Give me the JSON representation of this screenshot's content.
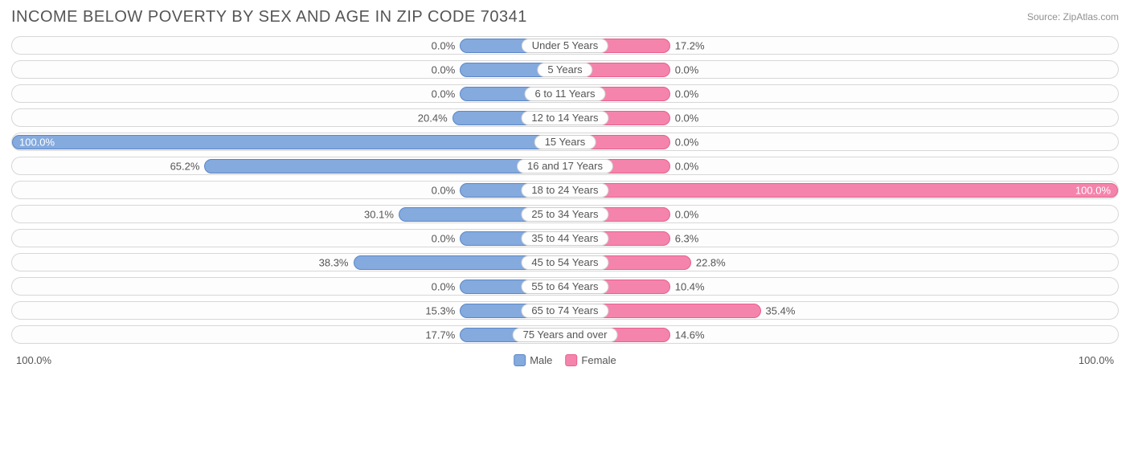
{
  "chart": {
    "type": "diverging-bar",
    "title": "INCOME BELOW POVERTY BY SEX AND AGE IN ZIP CODE 70341",
    "source": "Source: ZipAtlas.com",
    "title_color": "#555555",
    "title_fontsize": 20,
    "source_color": "#909090",
    "track_border_color": "#d7d7d7",
    "track_bg": "#fdfdfd",
    "badge_bg": "#fefefe",
    "badge_border": "#cfcfcf",
    "text_color": "#555555",
    "inside_text_color": "#ffffff",
    "male_fill": "#84aade",
    "male_border": "#5b87c7",
    "female_fill": "#f484ab",
    "female_border": "#e85f8f",
    "min_bar_pct": 19.0,
    "axis_left": "100.0%",
    "axis_right": "100.0%",
    "legend": {
      "male": "Male",
      "female": "Female"
    },
    "rows": [
      {
        "category": "Under 5 Years",
        "male": 0.0,
        "female": 17.2,
        "male_label": "0.0%",
        "female_label": "17.2%"
      },
      {
        "category": "5 Years",
        "male": 0.0,
        "female": 0.0,
        "male_label": "0.0%",
        "female_label": "0.0%"
      },
      {
        "category": "6 to 11 Years",
        "male": 0.0,
        "female": 0.0,
        "male_label": "0.0%",
        "female_label": "0.0%"
      },
      {
        "category": "12 to 14 Years",
        "male": 20.4,
        "female": 0.0,
        "male_label": "20.4%",
        "female_label": "0.0%"
      },
      {
        "category": "15 Years",
        "male": 100.0,
        "female": 0.0,
        "male_label": "100.0%",
        "female_label": "0.0%"
      },
      {
        "category": "16 and 17 Years",
        "male": 65.2,
        "female": 0.0,
        "male_label": "65.2%",
        "female_label": "0.0%"
      },
      {
        "category": "18 to 24 Years",
        "male": 0.0,
        "female": 100.0,
        "male_label": "0.0%",
        "female_label": "100.0%"
      },
      {
        "category": "25 to 34 Years",
        "male": 30.1,
        "female": 0.0,
        "male_label": "30.1%",
        "female_label": "0.0%"
      },
      {
        "category": "35 to 44 Years",
        "male": 0.0,
        "female": 6.3,
        "male_label": "0.0%",
        "female_label": "6.3%"
      },
      {
        "category": "45 to 54 Years",
        "male": 38.3,
        "female": 22.8,
        "male_label": "38.3%",
        "female_label": "22.8%"
      },
      {
        "category": "55 to 64 Years",
        "male": 0.0,
        "female": 10.4,
        "male_label": "0.0%",
        "female_label": "10.4%"
      },
      {
        "category": "65 to 74 Years",
        "male": 15.3,
        "female": 35.4,
        "male_label": "15.3%",
        "female_label": "35.4%"
      },
      {
        "category": "75 Years and over",
        "male": 17.7,
        "female": 14.6,
        "male_label": "17.7%",
        "female_label": "14.6%"
      }
    ]
  }
}
